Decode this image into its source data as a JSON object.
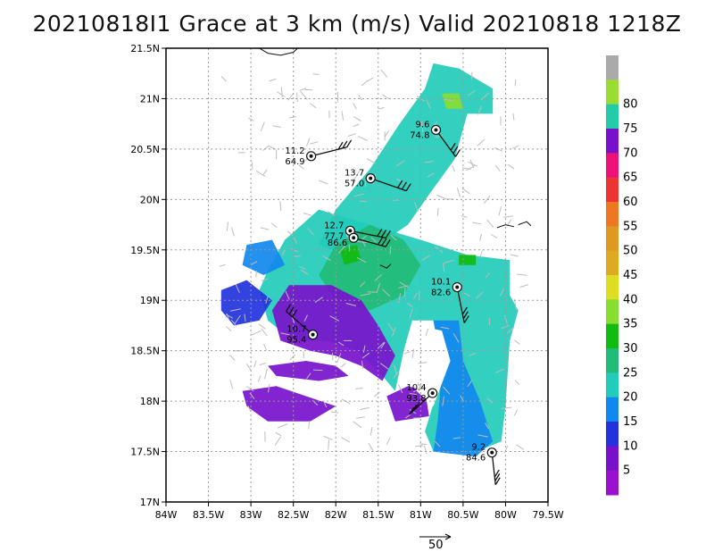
{
  "title": "20210818I1 Grace at 3 km (m/s) Valid 20210818 1218Z",
  "chart_data": {
    "type": "wind-vector map",
    "title": "20210818I1 Grace at 3 km (m/s) Valid 20210818 1218Z",
    "x_axis": {
      "range": [
        -84.0,
        -79.5
      ],
      "ticks": [
        {
          "value": -84.0,
          "label": "84W"
        },
        {
          "value": -83.5,
          "label": "83.5W"
        },
        {
          "value": -83.0,
          "label": "83W"
        },
        {
          "value": -82.5,
          "label": "82.5W"
        },
        {
          "value": -82.0,
          "label": "82W"
        },
        {
          "value": -81.5,
          "label": "81.5W"
        },
        {
          "value": -81.0,
          "label": "81W"
        },
        {
          "value": -80.5,
          "label": "80.5W"
        },
        {
          "value": -80.0,
          "label": "80W"
        },
        {
          "value": -79.5,
          "label": "79.5W"
        }
      ]
    },
    "y_axis": {
      "range": [
        17.0,
        21.5
      ],
      "ticks": [
        {
          "value": 17.0,
          "label": "17N"
        },
        {
          "value": 17.5,
          "label": "17.5N"
        },
        {
          "value": 18.0,
          "label": "18N"
        },
        {
          "value": 18.5,
          "label": "18.5N"
        },
        {
          "value": 19.0,
          "label": "19N"
        },
        {
          "value": 19.5,
          "label": "19.5N"
        },
        {
          "value": 20.0,
          "label": "20N"
        },
        {
          "value": 20.5,
          "label": "20.5N"
        },
        {
          "value": 21.0,
          "label": "21N"
        },
        {
          "value": 21.5,
          "label": "21.5N"
        }
      ]
    },
    "grid": true,
    "colorbar": {
      "levels": [
        {
          "label": "",
          "color": "#aaaaaa"
        },
        {
          "label": "80",
          "color": "#99dd33"
        },
        {
          "label": "75",
          "color": "#22ccaa"
        },
        {
          "label": "70",
          "color": "#7711cc"
        },
        {
          "label": "65",
          "color": "#ee1177"
        },
        {
          "label": "60",
          "color": "#ee3333"
        },
        {
          "label": "55",
          "color": "#ee7722"
        },
        {
          "label": "50",
          "color": "#dd9922"
        },
        {
          "label": "45",
          "color": "#ddaa22"
        },
        {
          "label": "40",
          "color": "#dddd22"
        },
        {
          "label": "35",
          "color": "#88dd33"
        },
        {
          "label": "30",
          "color": "#11bb11"
        },
        {
          "label": "25",
          "color": "#22bb77"
        },
        {
          "label": "20",
          "color": "#22ccbb"
        },
        {
          "label": "15",
          "color": "#1188ee"
        },
        {
          "label": "10",
          "color": "#2233dd"
        },
        {
          "label": "5",
          "color": "#7711cc"
        },
        {
          "label": "",
          "color": "#9911cc"
        }
      ]
    },
    "stations": [
      {
        "lon": -80.82,
        "lat": 20.69,
        "top": "9.6",
        "bottom": "74.8"
      },
      {
        "lon": -82.29,
        "lat": 20.43,
        "top": "11.2",
        "bottom": "64.9"
      },
      {
        "lon": -81.59,
        "lat": 20.21,
        "top": "13.7",
        "bottom": "57.0"
      },
      {
        "lon": -81.83,
        "lat": 19.69,
        "top": "12.7",
        "bottom": "77.7"
      },
      {
        "lon": -81.79,
        "lat": 19.62,
        "top": "",
        "bottom": "86.6"
      },
      {
        "lon": -80.57,
        "lat": 19.13,
        "top": "10.1",
        "bottom": "82.6"
      },
      {
        "lon": -82.27,
        "lat": 18.66,
        "top": "10.7",
        "bottom": "95.4"
      },
      {
        "lon": -80.86,
        "lat": 18.08,
        "top": "10.4",
        "bottom": "93.8"
      },
      {
        "lon": -80.16,
        "lat": 17.49,
        "top": "9.2",
        "bottom": "84.6"
      }
    ],
    "reference_vector": {
      "label": "50"
    }
  }
}
